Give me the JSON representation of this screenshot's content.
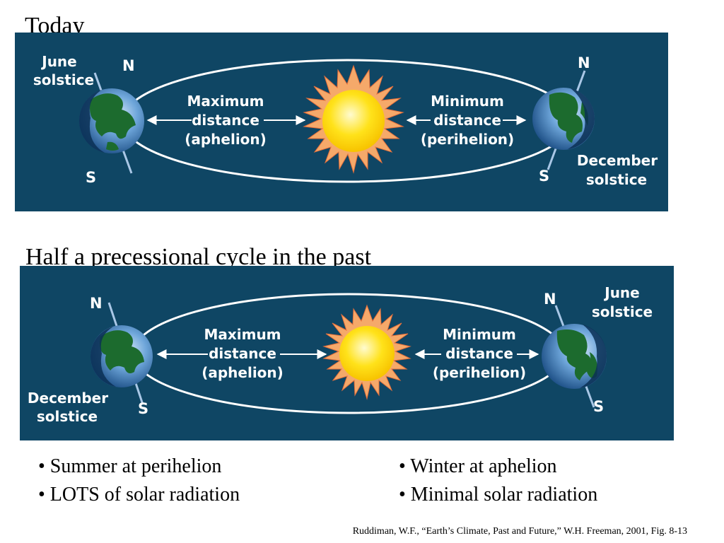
{
  "today": {
    "title": "Today",
    "june_solstice": [
      "June",
      "solstice"
    ],
    "december_solstice": [
      "December",
      "solstice"
    ],
    "max_distance": [
      "Maximum",
      "distance",
      "(aphelion)"
    ],
    "min_distance": [
      "Minimum",
      "distance",
      "(perihelion)"
    ],
    "north": "N",
    "south": "S"
  },
  "past": {
    "title": "Half a precessional cycle in the past",
    "june_solstice": [
      "June",
      "solstice"
    ],
    "december_solstice": [
      "December",
      "solstice"
    ],
    "max_distance": [
      "Maximum",
      "distance",
      "(aphelion)"
    ],
    "min_distance": [
      "Minimum",
      "distance",
      "(perihelion)"
    ],
    "north": "N",
    "south": "S"
  },
  "bullets_left": [
    "• Summer at perihelion",
    "• LOTS of solar radiation"
  ],
  "bullets_right": [
    "• Winter at aphelion",
    "• Minimal solar radiation"
  ],
  "citation": "Ruddiman, W.F., “Earth’s Climate, Past and Future,” W.H. Freeman, 2001, Fig. 8-13",
  "colors": {
    "panel_background": "#0f4664",
    "sun_core": "#ffe21a",
    "sun_rays": "#f5a96a",
    "ocean": "#4a86c4",
    "land": "#1c6b2e"
  },
  "icons": [
    "sun-icon",
    "earth-globe-icon",
    "double-arrow-icon"
  ]
}
